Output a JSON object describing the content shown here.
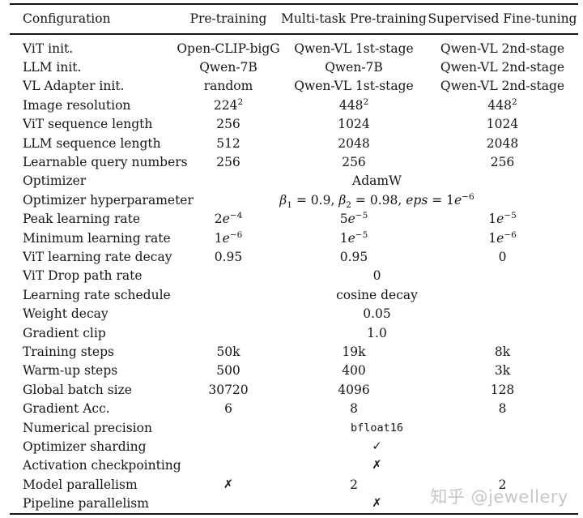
{
  "table": {
    "columns": [
      "Configuration",
      "Pre-training",
      "Multi-task Pre-training",
      "Supervised Fine-tuning"
    ],
    "rows": [
      {
        "label": "ViT init.",
        "values": [
          "Open-CLIP-bigG",
          "Qwen-VL 1st-stage",
          "Qwen-VL 2nd-stage"
        ]
      },
      {
        "label": "LLM init.",
        "values": [
          "Qwen-7B",
          "Qwen-7B",
          "Qwen-VL 2nd-stage"
        ]
      },
      {
        "label": "VL Adapter init.",
        "values": [
          "random",
          "Qwen-VL 1st-stage",
          "Qwen-VL 2nd-stage"
        ]
      },
      {
        "label": "Image resolution",
        "values": [
          "224^{2}",
          "448^{2}",
          "448^{2}"
        ]
      },
      {
        "label": "ViT sequence length",
        "values": [
          "256",
          "1024",
          "1024"
        ]
      },
      {
        "label": "LLM sequence length",
        "values": [
          "512",
          "2048",
          "2048"
        ]
      },
      {
        "label": "Learnable query numbers",
        "values": [
          "256",
          "256",
          "256"
        ]
      },
      {
        "label": "Optimizer",
        "span": "AdamW"
      },
      {
        "label": "Optimizer hyperparameter",
        "span": "*β*_{1} = 0.9, *β*_{2} = 0.98, *eps* = 1*e*^{−6}"
      },
      {
        "label": "Peak learning rate",
        "values": [
          "2*e*^{−4}",
          "5*e*^{−5}",
          "1*e*^{−5}"
        ]
      },
      {
        "label": "Minimum learning rate",
        "values": [
          "1*e*^{−6}",
          "1*e*^{−5}",
          "1*e*^{−6}"
        ]
      },
      {
        "label": "ViT learning rate decay",
        "values": [
          "0.95",
          "0.95",
          "0"
        ]
      },
      {
        "label": "ViT Drop path rate",
        "span": "0"
      },
      {
        "label": "Learning rate schedule",
        "span": "cosine decay"
      },
      {
        "label": "Weight decay",
        "span": "0.05"
      },
      {
        "label": "Gradient clip",
        "span": "1.0"
      },
      {
        "label": "Training steps",
        "values": [
          "50k",
          "19k",
          "8k"
        ]
      },
      {
        "label": "Warm-up steps",
        "values": [
          "500",
          "400",
          "3k"
        ]
      },
      {
        "label": "Global batch size",
        "values": [
          "30720",
          "4096",
          "128"
        ]
      },
      {
        "label": "Gradient Acc.",
        "values": [
          "6",
          "8",
          "8"
        ]
      },
      {
        "label": "Numerical precision",
        "span": "bfloat16",
        "mono": true
      },
      {
        "label": "Optimizer sharding",
        "span": "✓"
      },
      {
        "label": "Activation checkpointing",
        "span": "✗"
      },
      {
        "label": "Model parallelism",
        "values": [
          "✗",
          "2",
          "2"
        ]
      },
      {
        "label": "Pipeline parallelism",
        "span": "✗"
      }
    ]
  },
  "watermark": {
    "text": "知乎 @jewellery",
    "color": "#c6c6c6"
  }
}
